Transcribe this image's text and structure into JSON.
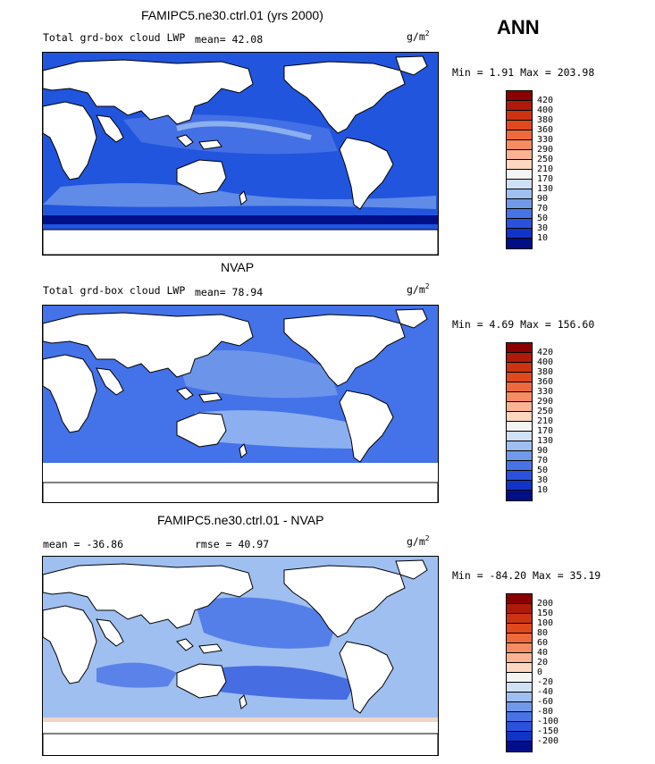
{
  "season": "ANN",
  "panels": [
    {
      "title": "FAMIPC5.ne30.ctrl.01 (yrs 2000)",
      "left_label": "Total grd-box cloud LWP",
      "stat_label": "mean=  42.08",
      "units": "g/m",
      "units_exp": "2",
      "minmax": "Min =   1.91 Max = 203.98",
      "ocean_color": "#2255dd",
      "colorbar": {
        "labels": [
          "420",
          "400",
          "380",
          "360",
          "330",
          "290",
          "250",
          "210",
          "170",
          "130",
          "90",
          "70",
          "50",
          "30",
          "10"
        ],
        "colors": [
          "#8b0000",
          "#b01a0a",
          "#cc3311",
          "#e0481e",
          "#ee6a3c",
          "#f58c62",
          "#fbb392",
          "#fdd7c0",
          "#f4f4f4",
          "#cfe0f7",
          "#9fbff0",
          "#7199ea",
          "#4873e6",
          "#2a52dd",
          "#1233c8",
          "#000e88"
        ]
      }
    },
    {
      "title": "NVAP",
      "left_label": "Total grd-box cloud LWP",
      "stat_label": "mean=  78.94",
      "units": "g/m",
      "units_exp": "2",
      "minmax": "Min =   4.69 Max = 156.60",
      "ocean_color": "#4472e8",
      "colorbar": {
        "labels": [
          "420",
          "400",
          "380",
          "360",
          "330",
          "290",
          "250",
          "210",
          "170",
          "130",
          "90",
          "70",
          "50",
          "30",
          "10"
        ],
        "colors": [
          "#8b0000",
          "#b01a0a",
          "#cc3311",
          "#e0481e",
          "#ee6a3c",
          "#f58c62",
          "#fbb392",
          "#fdd7c0",
          "#f4f4f4",
          "#cfe0f7",
          "#9fbff0",
          "#7199ea",
          "#4873e6",
          "#2a52dd",
          "#1233c8",
          "#000e88"
        ]
      }
    },
    {
      "title": "FAMIPC5.ne30.ctrl.01 - NVAP",
      "left_label": "mean = -36.86",
      "stat_label": "rmse =  40.97",
      "units": "g/m",
      "units_exp": "2",
      "minmax": "Min = -84.20 Max =  35.19",
      "ocean_color": "#9fbff0",
      "colorbar": {
        "labels": [
          "200",
          "150",
          "100",
          "80",
          "60",
          "40",
          "20",
          "0",
          "-20",
          "-40",
          "-60",
          "-80",
          "-100",
          "-150",
          "-200"
        ],
        "colors": [
          "#8b0000",
          "#b01a0a",
          "#cc3311",
          "#e0481e",
          "#ee6a3c",
          "#f58c62",
          "#fbb392",
          "#fdd7c0",
          "#f4f4f4",
          "#cfe0f7",
          "#9fbff0",
          "#7199ea",
          "#4873e6",
          "#2a52dd",
          "#1233c8",
          "#000e88"
        ]
      }
    }
  ]
}
